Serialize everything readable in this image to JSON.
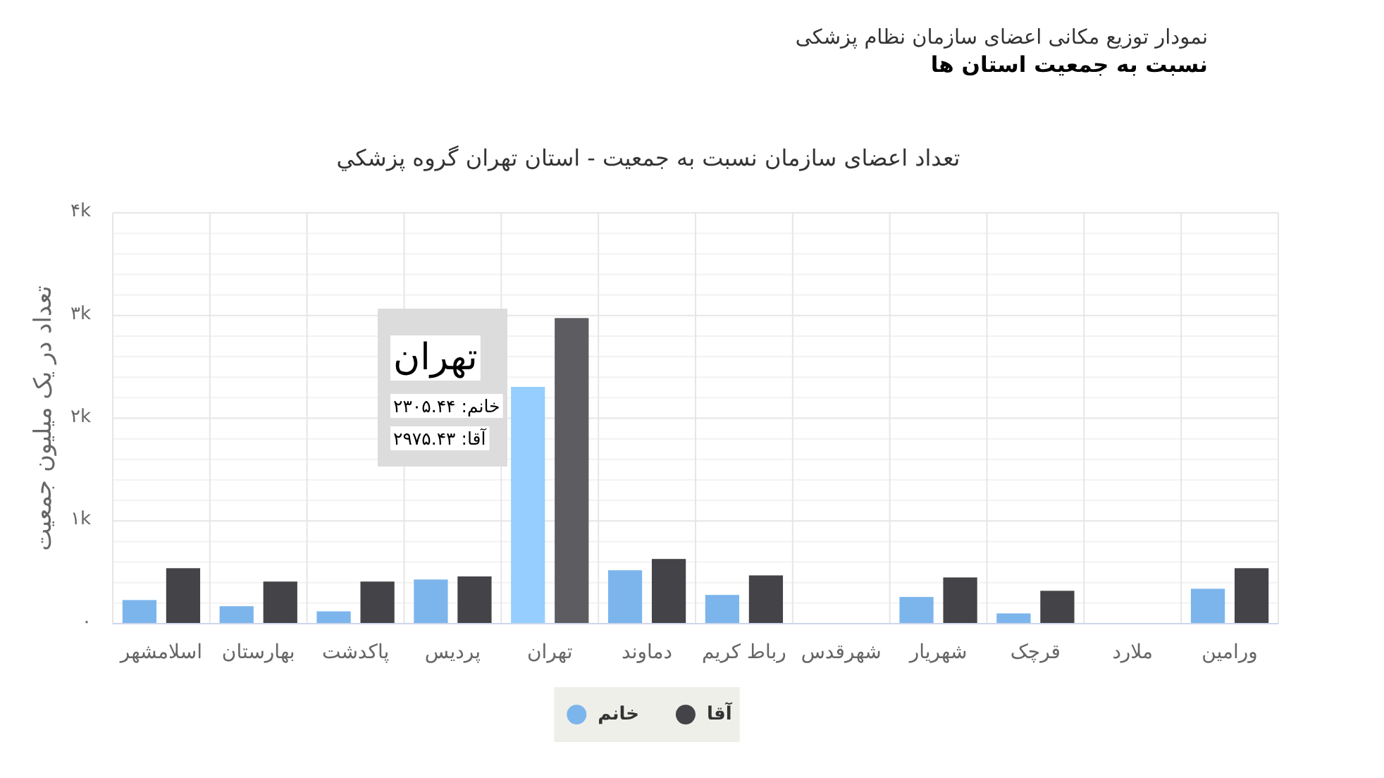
{
  "chart_data": {
    "type": "bar",
    "title": "تعداد اعضای سازمان نسبت به جمعیت - استان تهران گروه پزشکي",
    "ylabel": "تعداد در یک میلیون جمعیت",
    "categories": [
      "اسلامشهر",
      "بهارستان",
      "پاکدشت",
      "پردیس",
      "تهران",
      "دماوند",
      "رباط کریم",
      "شهرقدس",
      "شهریار",
      "قرچک",
      "ملارد",
      "ورامین"
    ],
    "series": [
      {
        "name": "خانم",
        "color": "#7cb5ec",
        "colors": [
          "#7cb5ec",
          "#7cb5ec",
          "#7cb5ec",
          "#7cb5ec",
          "#95ceff",
          "#7cb5ec",
          "#7cb5ec",
          null,
          "#7cb5ec",
          "#7cb5ec",
          null,
          "#7cb5ec"
        ],
        "values": [
          230,
          170,
          120,
          430,
          2305.44,
          520,
          280,
          null,
          260,
          100,
          null,
          340
        ]
      },
      {
        "name": "آقا",
        "color": "#434348",
        "colors": [
          "#434348",
          "#434348",
          "#434348",
          "#434348",
          "#5c5c61",
          "#434348",
          "#434348",
          null,
          "#434348",
          "#434348",
          null,
          "#434348"
        ],
        "values": [
          540,
          410,
          410,
          460,
          2975.43,
          630,
          470,
          null,
          450,
          320,
          null,
          540
        ]
      }
    ],
    "ylim": [
      0,
      4000
    ],
    "yticks": [
      {
        "value": 0,
        "label": "۰"
      },
      {
        "value": 1000,
        "label": "۱k"
      },
      {
        "value": 2000,
        "label": "۲k"
      },
      {
        "value": 3000,
        "label": "۳k"
      },
      {
        "value": 4000,
        "label": "۴k"
      }
    ],
    "grid": true,
    "legend": "bottom",
    "annotations": [
      "نمودار توزیع مکانی اعضای سازمان نظام پزشکی",
      "نسبت به جمعیت استان ها",
      "تهران",
      "خانم: ۲۳۰۵.۴۴",
      "آقا: ۲۹۷۵.۴۳"
    ]
  }
}
